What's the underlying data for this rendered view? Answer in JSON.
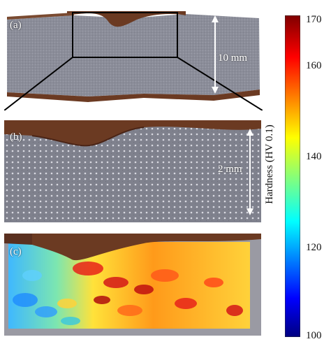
{
  "panels": {
    "a": {
      "label": "(a)",
      "scale_text": "10 mm"
    },
    "b": {
      "label": "(b)",
      "scale_text": "2 mm"
    },
    "c": {
      "label": "(c)"
    }
  },
  "colorbar": {
    "title": "Hardness (HV 0.1)",
    "ticks": [
      "170",
      "160",
      "140",
      "120",
      "100"
    ],
    "min": 100,
    "max": 170,
    "colormap": "jet"
  },
  "colors": {
    "specimen_gray": "#8a8c98",
    "corrosion_brown": "#6b3a22",
    "mount_bg": "#9a9aa3"
  }
}
